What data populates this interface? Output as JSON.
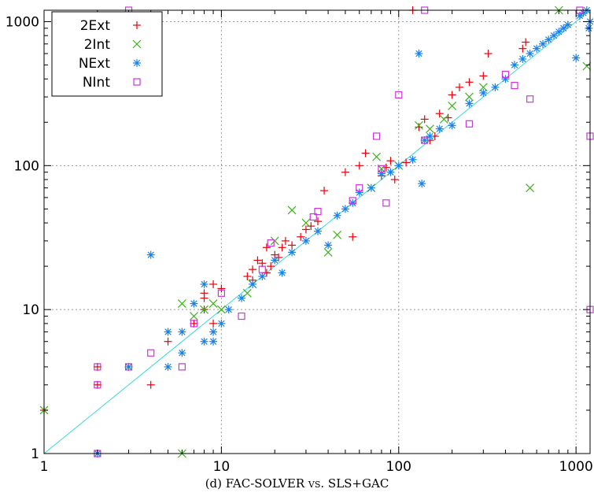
{
  "caption": {
    "label": "(d)",
    "algo_a": "FAC-SOLVER",
    "vs": "vs.",
    "algo_b": "SLS+GAC"
  },
  "chart_data": {
    "type": "scatter",
    "title": "",
    "xlabel": "",
    "ylabel": "",
    "xscale": "log",
    "yscale": "log",
    "xlim": [
      1,
      1200
    ],
    "ylim": [
      1,
      1200
    ],
    "x_ticks": [
      {
        "value": 1,
        "label": "1"
      },
      {
        "value": 10,
        "label": "10"
      },
      {
        "value": 100,
        "label": "100"
      },
      {
        "value": 1000,
        "label": "1000"
      }
    ],
    "y_ticks": [
      {
        "value": 1,
        "label": "1"
      },
      {
        "value": 10,
        "label": "10"
      },
      {
        "value": 100,
        "label": "100"
      },
      {
        "value": 1000,
        "label": "1000"
      }
    ],
    "grid": true,
    "legend_position": "top-left",
    "diagonal": {
      "color": "#39d8d8"
    },
    "series": [
      {
        "name": "2Ext",
        "marker": "plus",
        "color": "#e8000b",
        "points": [
          [
            1,
            2
          ],
          [
            2,
            3
          ],
          [
            2,
            4
          ],
          [
            4,
            3
          ],
          [
            5,
            6
          ],
          [
            7,
            8
          ],
          [
            8,
            10
          ],
          [
            8,
            12
          ],
          [
            8,
            13
          ],
          [
            9,
            8
          ],
          [
            9,
            15
          ],
          [
            10,
            14
          ],
          [
            14,
            17
          ],
          [
            15,
            16
          ],
          [
            15,
            19
          ],
          [
            16,
            22
          ],
          [
            17,
            21
          ],
          [
            18,
            18
          ],
          [
            18,
            27
          ],
          [
            19,
            20
          ],
          [
            20,
            24
          ],
          [
            21,
            23
          ],
          [
            22,
            27
          ],
          [
            23,
            30
          ],
          [
            25,
            28
          ],
          [
            28,
            32
          ],
          [
            30,
            36
          ],
          [
            32,
            38
          ],
          [
            35,
            41
          ],
          [
            38,
            67
          ],
          [
            50,
            90
          ],
          [
            55,
            32
          ],
          [
            60,
            100
          ],
          [
            65,
            122
          ],
          [
            80,
            85
          ],
          [
            85,
            97
          ],
          [
            90,
            108
          ],
          [
            95,
            80
          ],
          [
            110,
            105
          ],
          [
            120,
            1200
          ],
          [
            130,
            185
          ],
          [
            140,
            210
          ],
          [
            150,
            150
          ],
          [
            160,
            160
          ],
          [
            170,
            230
          ],
          [
            190,
            215
          ],
          [
            200,
            310
          ],
          [
            220,
            350
          ],
          [
            250,
            380
          ],
          [
            300,
            420
          ],
          [
            320,
            600
          ],
          [
            500,
            650
          ],
          [
            520,
            720
          ]
        ]
      },
      {
        "name": "2Int",
        "marker": "x",
        "color": "#3cb317",
        "points": [
          [
            1,
            2
          ],
          [
            6,
            1
          ],
          [
            6,
            11
          ],
          [
            7,
            9
          ],
          [
            8,
            10
          ],
          [
            9,
            11
          ],
          [
            10,
            10
          ],
          [
            14,
            13
          ],
          [
            15,
            15
          ],
          [
            20,
            30
          ],
          [
            25,
            49
          ],
          [
            30,
            40
          ],
          [
            40,
            25
          ],
          [
            45,
            33
          ],
          [
            70,
            70
          ],
          [
            75,
            115
          ],
          [
            80,
            95
          ],
          [
            100,
            100
          ],
          [
            130,
            190
          ],
          [
            150,
            180
          ],
          [
            180,
            210
          ],
          [
            200,
            260
          ],
          [
            250,
            300
          ],
          [
            300,
            350
          ],
          [
            550,
            70
          ],
          [
            800,
            1200
          ],
          [
            1150,
            490
          ]
        ]
      },
      {
        "name": "NExt",
        "marker": "star",
        "color": "#1781eb",
        "points": [
          [
            2,
            1
          ],
          [
            3,
            4
          ],
          [
            4,
            24
          ],
          [
            5,
            4
          ],
          [
            5,
            7
          ],
          [
            6,
            5
          ],
          [
            6,
            7
          ],
          [
            7,
            11
          ],
          [
            8,
            6
          ],
          [
            8,
            15
          ],
          [
            9,
            6
          ],
          [
            9,
            7
          ],
          [
            10,
            8
          ],
          [
            11,
            10
          ],
          [
            13,
            12
          ],
          [
            15,
            15
          ],
          [
            17,
            17
          ],
          [
            20,
            22
          ],
          [
            22,
            18
          ],
          [
            25,
            25
          ],
          [
            30,
            30
          ],
          [
            35,
            35
          ],
          [
            40,
            28
          ],
          [
            45,
            45
          ],
          [
            50,
            50
          ],
          [
            55,
            55
          ],
          [
            60,
            65
          ],
          [
            70,
            70
          ],
          [
            80,
            88
          ],
          [
            90,
            90
          ],
          [
            100,
            100
          ],
          [
            120,
            110
          ],
          [
            130,
            600
          ],
          [
            135,
            75
          ],
          [
            140,
            150
          ],
          [
            150,
            160
          ],
          [
            170,
            180
          ],
          [
            200,
            190
          ],
          [
            250,
            270
          ],
          [
            300,
            320
          ],
          [
            350,
            350
          ],
          [
            400,
            400
          ],
          [
            450,
            500
          ],
          [
            500,
            550
          ],
          [
            550,
            600
          ],
          [
            600,
            650
          ],
          [
            650,
            700
          ],
          [
            700,
            750
          ],
          [
            750,
            800
          ],
          [
            800,
            850
          ],
          [
            850,
            900
          ],
          [
            900,
            950
          ],
          [
            1000,
            560
          ],
          [
            1050,
            1100
          ],
          [
            1100,
            1150
          ],
          [
            1150,
            1200
          ],
          [
            1180,
            900
          ],
          [
            1200,
            1000
          ]
        ]
      },
      {
        "name": "NInt",
        "marker": "square",
        "color": "#cc35d9",
        "points": [
          [
            2,
            1
          ],
          [
            2,
            3
          ],
          [
            2,
            4
          ],
          [
            3,
            4
          ],
          [
            3,
            1200
          ],
          [
            4,
            5
          ],
          [
            6,
            4
          ],
          [
            7,
            8
          ],
          [
            10,
            13
          ],
          [
            13,
            9
          ],
          [
            17,
            19
          ],
          [
            19,
            29
          ],
          [
            33,
            44
          ],
          [
            35,
            48
          ],
          [
            55,
            57
          ],
          [
            60,
            70
          ],
          [
            75,
            160
          ],
          [
            80,
            95
          ],
          [
            85,
            55
          ],
          [
            100,
            310
          ],
          [
            140,
            1200
          ],
          [
            140,
            150
          ],
          [
            250,
            195
          ],
          [
            400,
            430
          ],
          [
            450,
            360
          ],
          [
            550,
            290
          ],
          [
            1050,
            1200
          ],
          [
            1200,
            10
          ],
          [
            1200,
            160
          ]
        ]
      }
    ]
  }
}
